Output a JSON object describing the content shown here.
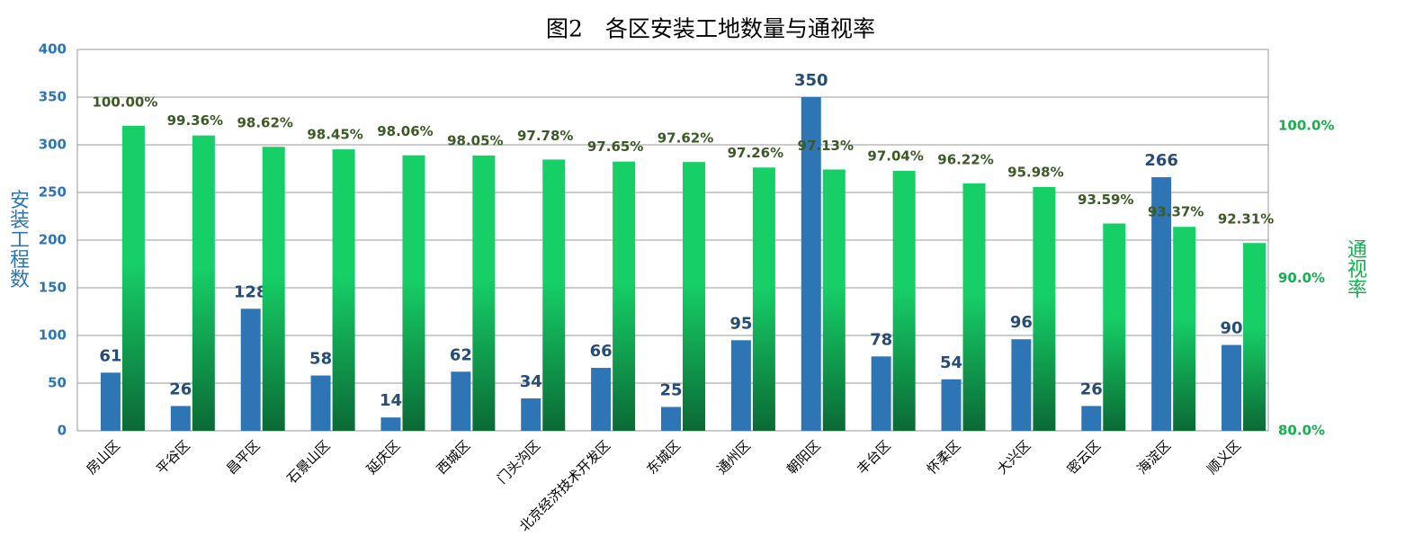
{
  "chart_data": {
    "type": "bar",
    "title": "图2　各区安装工地数量与通视率",
    "ylabel": "安装工程数",
    "y2label": "通视率",
    "categories": [
      "房山区",
      "平谷区",
      "昌平区",
      "石景山区",
      "延庆区",
      "西城区",
      "门头沟区",
      "北京经济技术开发区",
      "东城区",
      "通州区",
      "朝阳区",
      "丰台区",
      "怀柔区",
      "大兴区",
      "密云区",
      "海淀区",
      "顺义区"
    ],
    "series": [
      {
        "color": "#2e75b6",
        "values": [
          61,
          26,
          128,
          58,
          14,
          62,
          34,
          66,
          25,
          95,
          350,
          78,
          54,
          96,
          26,
          266,
          90
        ]
      },
      {
        "color": "#16cf67",
        "axis": "y2",
        "values": [
          100,
          99.36,
          98.62,
          98.45,
          98.06,
          98.05,
          97.78,
          97.65,
          97.62,
          97.26,
          97.13,
          97.04,
          96.22,
          95.98,
          93.59,
          93.37,
          92.31
        ],
        "value_labels": [
          "100.00%",
          "99.36%",
          "98.62%",
          "98.45%",
          "98.06%",
          "98.05%",
          "97.78%",
          "97.65%",
          "97.62%",
          "97.26%",
          "97.13%",
          "97.04%",
          "96.22%",
          "95.98%",
          "93.59%",
          "93.37%",
          "92.31%"
        ]
      }
    ],
    "ylim": [
      0,
      400
    ],
    "yticks": [
      0,
      50,
      100,
      150,
      200,
      250,
      300,
      350,
      400
    ],
    "y2lim": [
      80,
      105
    ],
    "y2ticks": [
      {
        "value": 80,
        "label": "80.0%"
      },
      {
        "value": 90,
        "label": "90.0%"
      },
      {
        "value": 100,
        "label": "100.0%"
      }
    ],
    "grid": true
  }
}
